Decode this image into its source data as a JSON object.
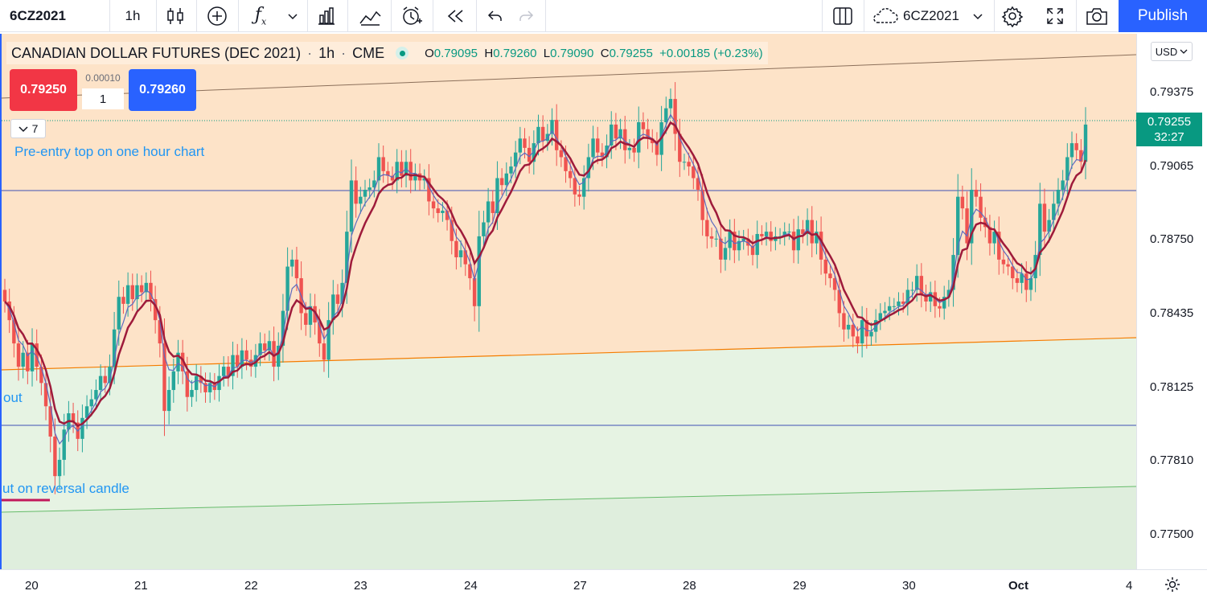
{
  "toolbar": {
    "symbol": "6CZ2021",
    "interval": "1h",
    "layout_symbol": "6CZ2021",
    "publish_label": "Publish"
  },
  "legend": {
    "title": "CANADIAN DOLLAR FUTURES (DEC 2021)",
    "interval": "1h",
    "exchange": "CME",
    "o_label": "O",
    "o_value": "0.79095",
    "h_label": "H",
    "h_value": "0.79260",
    "l_label": "L",
    "l_value": "0.79090",
    "c_label": "C",
    "c_value": "0.79255",
    "change": "+0.00185 (+0.23%)"
  },
  "trade": {
    "sell_price": "0.79250",
    "buy_price": "0.79260",
    "spread": "0.00010",
    "quantity": "1"
  },
  "collapse_count": "7",
  "notes": {
    "top": "Pre-entry top on one hour chart",
    "left_upper": "out",
    "left_lower": "ut on reversal candle"
  },
  "price_axis": {
    "currency": "USD",
    "labels": [
      "0.79375",
      "0.79065",
      "0.78750",
      "0.78435",
      "0.78125",
      "0.77810",
      "0.77500"
    ],
    "current_price": "0.79255",
    "countdown": "32:27"
  },
  "time_axis": {
    "labels": [
      "20",
      "21",
      "22",
      "23",
      "24",
      "27",
      "28",
      "29",
      "30",
      "Oct",
      "4"
    ]
  },
  "colors": {
    "up": "#26a69a",
    "down": "#ef5350",
    "publish": "#2962ff",
    "zone_top": "#fde3c8",
    "zone_bottom": "#e6f3e3",
    "note_text": "#2196f3"
  },
  "chart_data": {
    "type": "candlestick",
    "ylim": [
      0.7735,
      0.7965
    ],
    "closes": [
      0.785,
      0.7842,
      0.7832,
      0.7822,
      0.7828,
      0.782,
      0.7832,
      0.7822,
      0.7815,
      0.7805,
      0.7792,
      0.7775,
      0.7782,
      0.7795,
      0.7802,
      0.7798,
      0.7791,
      0.78,
      0.7805,
      0.7808,
      0.7812,
      0.7818,
      0.7815,
      0.7822,
      0.7838,
      0.7852,
      0.7849,
      0.7857,
      0.7851,
      0.7857,
      0.7854,
      0.7858,
      0.7851,
      0.7842,
      0.7832,
      0.7803,
      0.7812,
      0.782,
      0.7828,
      0.782,
      0.7809,
      0.7812,
      0.7818,
      0.7815,
      0.7811,
      0.7815,
      0.7812,
      0.7818,
      0.7822,
      0.7818,
      0.7827,
      0.7822,
      0.7829,
      0.7825,
      0.7822,
      0.7827,
      0.7832,
      0.7829,
      0.7833,
      0.7822,
      0.7831,
      0.7846,
      0.7865,
      0.7868,
      0.786,
      0.7845,
      0.784,
      0.7848,
      0.7841,
      0.7832,
      0.7825,
      0.7842,
      0.7853,
      0.7849,
      0.7858,
      0.788,
      0.7902,
      0.7892,
      0.7895,
      0.7898,
      0.7899,
      0.7902,
      0.7912,
      0.7906,
      0.7904,
      0.7902,
      0.791,
      0.7904,
      0.791,
      0.7902,
      0.7905,
      0.7902,
      0.7903,
      0.7893,
      0.789,
      0.7888,
      0.7889,
      0.7885,
      0.7876,
      0.7869,
      0.7872,
      0.7866,
      0.786,
      0.7848,
      0.7878,
      0.7884,
      0.7893,
      0.7888,
      0.7903,
      0.79,
      0.7905,
      0.7908,
      0.7914,
      0.792,
      0.7916,
      0.791,
      0.7918,
      0.7925,
      0.7919,
      0.7922,
      0.7928,
      0.7915,
      0.7912,
      0.7906,
      0.7903,
      0.7896,
      0.7895,
      0.7903,
      0.7912,
      0.792,
      0.7914,
      0.7912,
      0.7917,
      0.7926,
      0.792,
      0.7924,
      0.7915,
      0.7916,
      0.7914,
      0.7927,
      0.7924,
      0.792,
      0.7918,
      0.7913,
      0.7927,
      0.7933,
      0.7937,
      0.7922,
      0.791,
      0.791,
      0.7908,
      0.7903,
      0.7898,
      0.7885,
      0.7878,
      0.7877,
      0.7877,
      0.7868,
      0.7873,
      0.788,
      0.7872,
      0.7876,
      0.7877,
      0.7874,
      0.787,
      0.7879,
      0.7878,
      0.788,
      0.7876,
      0.7878,
      0.7878,
      0.788,
      0.788,
      0.7872,
      0.7881,
      0.7879,
      0.7885,
      0.7875,
      0.788,
      0.7868,
      0.7862,
      0.786,
      0.7855,
      0.7845,
      0.7838,
      0.784,
      0.7835,
      0.7832,
      0.7842,
      0.7835,
      0.7837,
      0.7842,
      0.7845,
      0.7846,
      0.7848,
      0.7848,
      0.785,
      0.7849,
      0.7855,
      0.7855,
      0.7861,
      0.7853,
      0.785,
      0.7854,
      0.7848,
      0.7847,
      0.7852,
      0.7855,
      0.787,
      0.7895,
      0.789,
      0.7875,
      0.7898,
      0.7895,
      0.7886,
      0.7882,
      0.7875,
      0.788,
      0.7868,
      0.7866,
      0.7865,
      0.786,
      0.7858,
      0.7862,
      0.7855,
      0.786,
      0.787,
      0.7892,
      0.788,
      0.7885,
      0.7892,
      0.7898,
      0.7902,
      0.7912,
      0.7918,
      0.7915,
      0.791,
      0.7926
    ]
  }
}
